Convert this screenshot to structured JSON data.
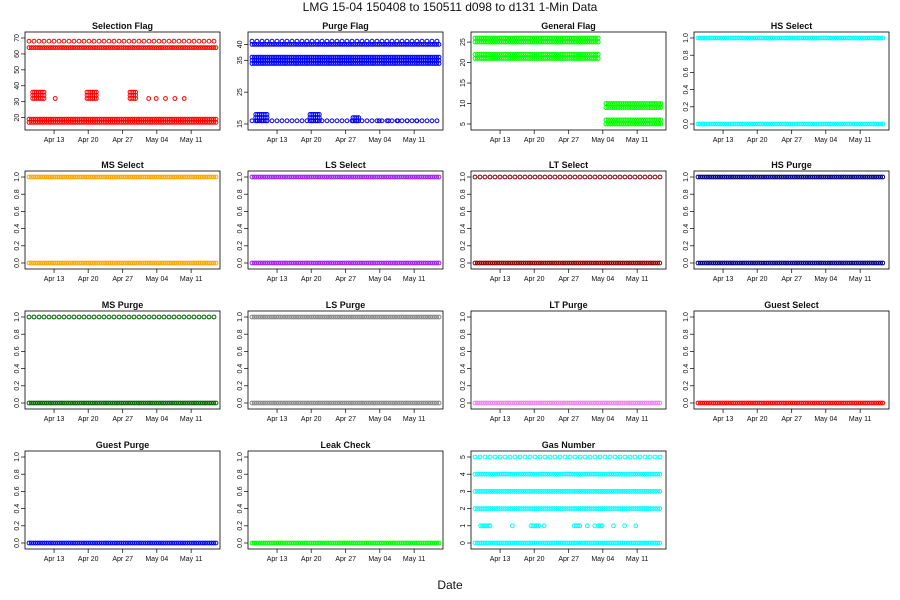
{
  "figure": {
    "title": "LMG   15-04    150408 to 150511    d098 to d131   1-Min Data",
    "xlabel": "Date",
    "x_ticks": [
      "Apr 13",
      "Apr 20",
      "Apr 27",
      "May 04",
      "May 11"
    ]
  },
  "chart_data": [
    {
      "type": "scatter",
      "title": "Selection Flag",
      "color": "#ff0000",
      "ylim": [
        16,
        70
      ],
      "y_ticks": [
        20,
        30,
        40,
        50,
        60,
        70
      ],
      "bands": [
        {
          "y": 17,
          "start": 0,
          "end": 1,
          "style": "dense"
        },
        {
          "y": 19,
          "start": 0,
          "end": 1,
          "style": "dense"
        },
        {
          "y": 64,
          "start": 0,
          "end": 1,
          "style": "dense"
        },
        {
          "y": 68,
          "start": 0,
          "end": 1,
          "style": "sparse"
        }
      ],
      "clusters": [
        {
          "ys": [
            32,
            34,
            36
          ],
          "xs": [
            0.02,
            0.03,
            0.04,
            0.05,
            0.06,
            0.07,
            0.08
          ]
        },
        {
          "ys": [
            32,
            34,
            36
          ],
          "xs": [
            0.31,
            0.32,
            0.33,
            0.34,
            0.35,
            0.36
          ]
        },
        {
          "ys": [
            32,
            34,
            36
          ],
          "xs": [
            0.54,
            0.55,
            0.56,
            0.57
          ]
        },
        {
          "ys": [
            32
          ],
          "xs": [
            0.14,
            0.64,
            0.68,
            0.73,
            0.78,
            0.83
          ]
        }
      ]
    },
    {
      "type": "scatter",
      "title": "Purge Flag",
      "color": "#0000ff",
      "ylim": [
        15,
        42
      ],
      "y_ticks": [
        15,
        25,
        35,
        40
      ],
      "bands": [
        {
          "y": 16,
          "start": 0,
          "end": 1,
          "style": "sparse"
        },
        {
          "y": 34,
          "start": 0,
          "end": 1,
          "style": "dense"
        },
        {
          "y": 35,
          "start": 0,
          "end": 1,
          "style": "dense"
        },
        {
          "y": 36,
          "start": 0,
          "end": 1,
          "style": "dense"
        },
        {
          "y": 40,
          "start": 0,
          "end": 1,
          "style": "dense"
        },
        {
          "y": 41,
          "start": 0,
          "end": 1,
          "style": "sparse"
        }
      ],
      "clusters": [
        {
          "ys": [
            16,
            17,
            18
          ],
          "xs": [
            0.02,
            0.03,
            0.04,
            0.05,
            0.06,
            0.07,
            0.08
          ]
        },
        {
          "ys": [
            16,
            17,
            18
          ],
          "xs": [
            0.31,
            0.32,
            0.33,
            0.34,
            0.35,
            0.36
          ]
        },
        {
          "ys": [
            16,
            17
          ],
          "xs": [
            0.54,
            0.55,
            0.56,
            0.57
          ]
        },
        {
          "ys": [
            16
          ],
          "xs": [
            0.68,
            0.73,
            0.78,
            0.83,
            0.88
          ]
        }
      ]
    },
    {
      "type": "scatter",
      "title": "General Flag",
      "color": "#00ff00",
      "ylim": [
        5,
        26
      ],
      "y_ticks": [
        5,
        10,
        15,
        20,
        25
      ],
      "bands": [
        {
          "y": 21,
          "start": 0,
          "end": 0.66,
          "style": "dense"
        },
        {
          "y": 22,
          "start": 0,
          "end": 0.66,
          "style": "dense"
        },
        {
          "y": 25,
          "start": 0,
          "end": 0.66,
          "style": "dense"
        },
        {
          "y": 26,
          "start": 0,
          "end": 0.66,
          "style": "dense"
        },
        {
          "y": 5,
          "start": 0.7,
          "end": 1,
          "style": "dense"
        },
        {
          "y": 6,
          "start": 0.7,
          "end": 1,
          "style": "dense"
        },
        {
          "y": 9,
          "start": 0.7,
          "end": 1,
          "style": "dense"
        },
        {
          "y": 10,
          "start": 0.7,
          "end": 1,
          "style": "dense"
        }
      ],
      "clusters": []
    },
    {
      "type": "scatter",
      "title": "HS Select",
      "color": "#00ffff",
      "ylim": [
        0,
        1
      ],
      "y_ticks": [
        0.0,
        0.2,
        0.4,
        0.6,
        0.8,
        1.0
      ],
      "bands": [
        {
          "y": 0,
          "start": 0,
          "end": 1,
          "style": "dense"
        },
        {
          "y": 1,
          "start": 0,
          "end": 1,
          "style": "dense"
        }
      ],
      "clusters": []
    },
    {
      "type": "scatter",
      "title": "MS Select",
      "color": "#ffa500",
      "ylim": [
        0,
        1
      ],
      "y_ticks": [
        0.0,
        0.2,
        0.4,
        0.6,
        0.8,
        1.0
      ],
      "bands": [
        {
          "y": 0,
          "start": 0,
          "end": 1,
          "style": "dense"
        },
        {
          "y": 1,
          "start": 0,
          "end": 1,
          "style": "dense"
        }
      ],
      "clusters": []
    },
    {
      "type": "scatter",
      "title": "LS Select",
      "color": "#a020f0",
      "ylim": [
        0,
        1
      ],
      "y_ticks": [
        0.0,
        0.2,
        0.4,
        0.6,
        0.8,
        1.0
      ],
      "bands": [
        {
          "y": 0,
          "start": 0,
          "end": 1,
          "style": "dense"
        },
        {
          "y": 1,
          "start": 0,
          "end": 1,
          "style": "dense"
        }
      ],
      "clusters": []
    },
    {
      "type": "scatter",
      "title": "LT Select",
      "color": "#8b0000",
      "ylim": [
        0,
        1
      ],
      "y_ticks": [
        0.0,
        0.2,
        0.4,
        0.6,
        0.8,
        1.0
      ],
      "bands": [
        {
          "y": 0,
          "start": 0,
          "end": 1,
          "style": "dense"
        },
        {
          "y": 1,
          "start": 0,
          "end": 1,
          "style": "sparse"
        }
      ],
      "clusters": []
    },
    {
      "type": "scatter",
      "title": "HS Purge",
      "color": "#000080",
      "ylim": [
        0,
        1
      ],
      "y_ticks": [
        0.0,
        0.2,
        0.4,
        0.6,
        0.8,
        1.0
      ],
      "bands": [
        {
          "y": 0,
          "start": 0,
          "end": 1,
          "style": "dense"
        },
        {
          "y": 1,
          "start": 0,
          "end": 1,
          "style": "dense"
        }
      ],
      "clusters": []
    },
    {
      "type": "scatter",
      "title": "MS Purge",
      "color": "#006400",
      "ylim": [
        0,
        1
      ],
      "y_ticks": [
        0.0,
        0.2,
        0.4,
        0.6,
        0.8,
        1.0
      ],
      "bands": [
        {
          "y": 0,
          "start": 0,
          "end": 1,
          "style": "dense"
        },
        {
          "y": 1,
          "start": 0,
          "end": 1,
          "style": "sparse"
        }
      ],
      "clusters": []
    },
    {
      "type": "scatter",
      "title": "LS Purge",
      "color": "#888888",
      "ylim": [
        0,
        1
      ],
      "y_ticks": [
        0.0,
        0.2,
        0.4,
        0.6,
        0.8,
        1.0
      ],
      "bands": [
        {
          "y": 0,
          "start": 0,
          "end": 1,
          "style": "dense"
        },
        {
          "y": 1,
          "start": 0,
          "end": 1,
          "style": "dense"
        }
      ],
      "clusters": []
    },
    {
      "type": "scatter",
      "title": "LT Purge",
      "color": "#ee82ee",
      "ylim": [
        0,
        1
      ],
      "y_ticks": [
        0.0,
        0.2,
        0.4,
        0.6,
        0.8,
        1.0
      ],
      "bands": [
        {
          "y": 0,
          "start": 0,
          "end": 1,
          "style": "dense"
        }
      ],
      "clusters": []
    },
    {
      "type": "scatter",
      "title": "Guest Select",
      "color": "#ff0000",
      "ylim": [
        0,
        1
      ],
      "y_ticks": [
        0.0,
        0.2,
        0.4,
        0.6,
        0.8,
        1.0
      ],
      "bands": [
        {
          "y": 0,
          "start": 0,
          "end": 1,
          "style": "dense"
        }
      ],
      "clusters": []
    },
    {
      "type": "scatter",
      "title": "Guest Purge",
      "color": "#0000ff",
      "ylim": [
        0,
        1
      ],
      "y_ticks": [
        0.0,
        0.2,
        0.4,
        0.6,
        0.8,
        1.0
      ],
      "bands": [
        {
          "y": 0,
          "start": 0,
          "end": 1,
          "style": "dense"
        }
      ],
      "clusters": []
    },
    {
      "type": "scatter",
      "title": "Leak Check",
      "color": "#00ff00",
      "ylim": [
        0,
        1
      ],
      "y_ticks": [
        0.0,
        0.2,
        0.4,
        0.6,
        0.8,
        1.0
      ],
      "bands": [
        {
          "y": 0,
          "start": 0,
          "end": 1,
          "style": "dense"
        }
      ],
      "clusters": []
    },
    {
      "type": "scatter",
      "title": "Gas Number",
      "color": "#00ffff",
      "ylim": [
        0,
        5
      ],
      "y_ticks": [
        0,
        1,
        2,
        3,
        4,
        5
      ],
      "bands": [
        {
          "y": 0,
          "start": 0,
          "end": 1,
          "style": "dense"
        },
        {
          "y": 2,
          "start": 0,
          "end": 1,
          "style": "dense"
        },
        {
          "y": 3,
          "start": 0,
          "end": 1,
          "style": "dense"
        },
        {
          "y": 4,
          "start": 0,
          "end": 1,
          "style": "dense"
        },
        {
          "y": 5,
          "start": 0,
          "end": 1,
          "style": "sparse"
        }
      ],
      "clusters": [
        {
          "ys": [
            1
          ],
          "xs": [
            0.03,
            0.04,
            0.05,
            0.06,
            0.07,
            0.08,
            0.2,
            0.3,
            0.31,
            0.32,
            0.33,
            0.34,
            0.37,
            0.53,
            0.54,
            0.55,
            0.56,
            0.6,
            0.64,
            0.66,
            0.67,
            0.68,
            0.74,
            0.8,
            0.86
          ]
        }
      ]
    }
  ]
}
